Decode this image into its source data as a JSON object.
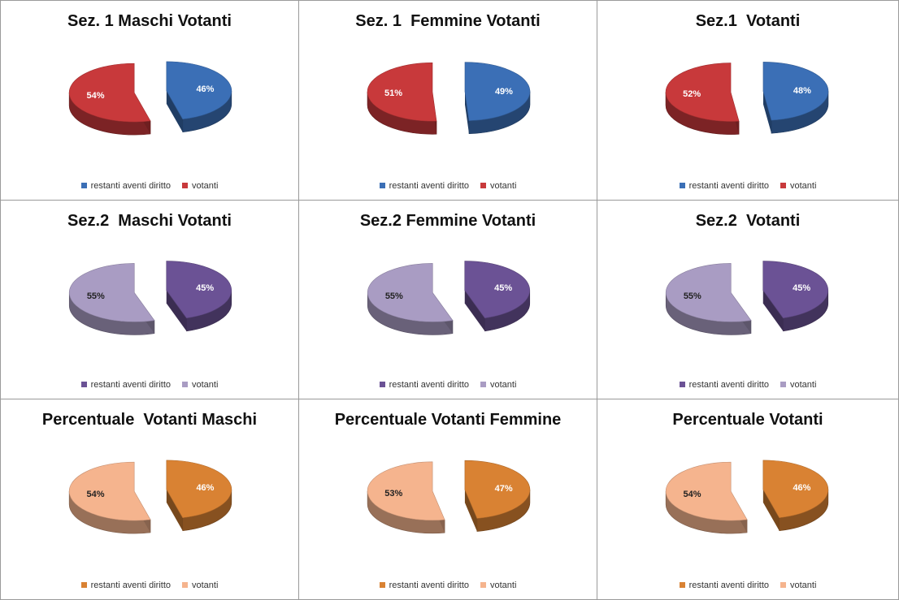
{
  "chart_data": [
    {
      "type": "pie",
      "title": "Sez. 1 Maschi Votanti",
      "categories": [
        "restanti aventi diritto",
        "votanti"
      ],
      "values": [
        46,
        54
      ],
      "labels": [
        "46%",
        "54%"
      ],
      "colors": [
        "#3b6fb6",
        "#c8393b"
      ],
      "legend": "bottom"
    },
    {
      "type": "pie",
      "title": "Sez. 1  Femmine Votanti",
      "categories": [
        "restanti aventi diritto",
        "votanti"
      ],
      "values": [
        49,
        51
      ],
      "labels": [
        "49%",
        "51%"
      ],
      "colors": [
        "#3b6fb6",
        "#c8393b"
      ],
      "legend": "bottom"
    },
    {
      "type": "pie",
      "title": "Sez.1  Votanti",
      "categories": [
        "restanti aventi diritto",
        "votanti"
      ],
      "values": [
        48,
        52
      ],
      "labels": [
        "48%",
        "52%"
      ],
      "colors": [
        "#3b6fb6",
        "#c8393b"
      ],
      "legend": "bottom"
    },
    {
      "type": "pie",
      "title": "Sez.2  Maschi Votanti",
      "categories": [
        "restanti aventi diritto",
        "votanti"
      ],
      "values": [
        45,
        55
      ],
      "labels": [
        "45%",
        "55%"
      ],
      "colors": [
        "#6b5295",
        "#a99cc3"
      ],
      "legend": "bottom"
    },
    {
      "type": "pie",
      "title": "Sez.2 Femmine Votanti",
      "categories": [
        "restanti aventi diritto",
        "votanti"
      ],
      "values": [
        45,
        55
      ],
      "labels": [
        "45%",
        "55%"
      ],
      "colors": [
        "#6b5295",
        "#a99cc3"
      ],
      "legend": "bottom"
    },
    {
      "type": "pie",
      "title": "Sez.2  Votanti",
      "categories": [
        "restanti aventi diritto",
        "votanti"
      ],
      "values": [
        45,
        55
      ],
      "labels": [
        "45%",
        "55%"
      ],
      "colors": [
        "#6b5295",
        "#a99cc3"
      ],
      "legend": "bottom"
    },
    {
      "type": "pie",
      "title": "Percentuale  Votanti Maschi",
      "categories": [
        "restanti aventi diritto",
        "votanti"
      ],
      "values": [
        46,
        54
      ],
      "labels": [
        "46%",
        "54%"
      ],
      "colors": [
        "#d98233",
        "#f5b48e"
      ],
      "legend": "bottom"
    },
    {
      "type": "pie",
      "title": "Percentuale Votanti Femmine",
      "categories": [
        "restanti aventi diritto",
        "votanti"
      ],
      "values": [
        47,
        53
      ],
      "labels": [
        "47%",
        "53%"
      ],
      "colors": [
        "#d98233",
        "#f5b48e"
      ],
      "legend": "bottom"
    },
    {
      "type": "pie",
      "title": "Percentuale Votanti",
      "categories": [
        "restanti aventi diritto",
        "votanti"
      ],
      "values": [
        46,
        54
      ],
      "labels": [
        "46%",
        "54%"
      ],
      "colors": [
        "#d98233",
        "#f5b48e"
      ],
      "legend": "bottom"
    }
  ]
}
